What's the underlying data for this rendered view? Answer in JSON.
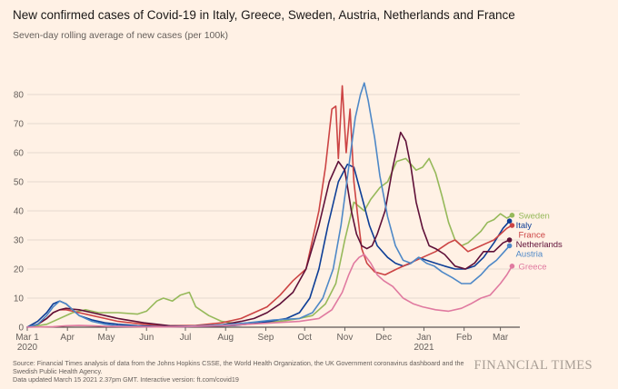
{
  "header": {
    "title": "New confirmed cases of Covid-19 in Italy, Greece, Sweden, Austria, Netherlands and France",
    "subtitle": "Seven-day rolling average of new cases (per 100k)"
  },
  "footer": {
    "source": "Source: Financial Times analysis of data from the Johns Hopkins CSSE, the World Health Organization, the UK Government coronavirus dashboard and the Swedish Public Health Agency.",
    "updated": "Data updated March 15 2021 2.37pm GMT. Interactive version: ft.com/covid19",
    "logo": "FINANCIAL TIMES"
  },
  "chart_data": {
    "type": "line",
    "title": "New confirmed cases of Covid-19 in Italy, Greece, Sweden, Austria, Netherlands and France",
    "subtitle": "Seven-day rolling average of new cases (per 100k)",
    "xlabel": "",
    "ylabel": "",
    "x_unit": "days since 2020-03-01",
    "xlim": [
      0,
      380
    ],
    "ylim": [
      0,
      85
    ],
    "y_ticks": [
      0,
      10,
      20,
      30,
      40,
      50,
      60,
      70,
      80
    ],
    "x_ticks": [
      {
        "day": 0,
        "label": "Mar 1",
        "sub": "2020"
      },
      {
        "day": 31,
        "label": "Apr"
      },
      {
        "day": 61,
        "label": "May"
      },
      {
        "day": 92,
        "label": "Jun"
      },
      {
        "day": 122,
        "label": "Jul"
      },
      {
        "day": 153,
        "label": "Aug"
      },
      {
        "day": 184,
        "label": "Sep"
      },
      {
        "day": 214,
        "label": "Oct"
      },
      {
        "day": 245,
        "label": "Nov"
      },
      {
        "day": 275,
        "label": "Dec"
      },
      {
        "day": 306,
        "label": "Jan",
        "sub": "2021"
      },
      {
        "day": 337,
        "label": "Feb"
      },
      {
        "day": 365,
        "label": "Mar"
      }
    ],
    "grid": "horizontal",
    "legend": "right, labels at line ends",
    "series": [
      {
        "name": "Sweden",
        "color": "#96b95a",
        "x": [
          0,
          15,
          25,
          35,
          45,
          55,
          70,
          85,
          92,
          100,
          105,
          112,
          118,
          125,
          130,
          140,
          150,
          165,
          180,
          195,
          210,
          220,
          230,
          238,
          245,
          252,
          260,
          265,
          272,
          278,
          285,
          292,
          300,
          305,
          310,
          315,
          320,
          325,
          330,
          335,
          340,
          345,
          350,
          355,
          360,
          365,
          370,
          374
        ],
        "y": [
          0,
          1,
          3,
          5,
          6,
          5,
          5,
          4.5,
          5.5,
          9,
          10,
          9,
          11,
          12,
          7,
          4,
          2,
          1,
          1.5,
          2,
          3,
          4,
          8,
          15,
          30,
          43,
          40,
          44,
          48,
          50,
          57,
          58,
          54,
          55,
          58,
          53,
          45,
          36,
          30,
          28,
          29,
          31,
          33,
          36,
          37,
          39,
          37.5,
          38.5
        ]
      },
      {
        "name": "Italy",
        "color": "#0d3e96",
        "x": [
          0,
          8,
          15,
          20,
          25,
          30,
          35,
          40,
          50,
          60,
          70,
          85,
          100,
          120,
          140,
          160,
          180,
          200,
          210,
          218,
          225,
          232,
          240,
          247,
          252,
          258,
          264,
          270,
          278,
          284,
          290,
          296,
          302,
          308,
          315,
          322,
          330,
          338,
          345,
          352,
          360,
          367,
          372
        ],
        "y": [
          0,
          2,
          5,
          8,
          9,
          8,
          6,
          4,
          2.5,
          1.5,
          1,
          0.5,
          0.3,
          0.2,
          0.3,
          0.6,
          1.5,
          3,
          5,
          10,
          20,
          35,
          50,
          56,
          55,
          45,
          35,
          28,
          24,
          22,
          21,
          22,
          24,
          23,
          22,
          21,
          20,
          20,
          21,
          24,
          29,
          34,
          36.5
        ]
      },
      {
        "name": "France",
        "color": "#cc4444",
        "x": [
          0,
          8,
          15,
          20,
          25,
          30,
          35,
          40,
          50,
          60,
          70,
          90,
          110,
          130,
          150,
          165,
          175,
          185,
          195,
          205,
          215,
          225,
          230,
          235,
          238,
          240,
          243,
          246,
          249,
          252,
          255,
          258,
          262,
          268,
          276,
          285,
          295,
          305,
          315,
          325,
          330,
          335,
          340,
          345,
          350,
          355,
          360,
          365,
          370,
          374
        ],
        "y": [
          0,
          1,
          3,
          5,
          6,
          6,
          5.5,
          5,
          4,
          3,
          2,
          1,
          0.5,
          0.6,
          1.5,
          3,
          5,
          7,
          11,
          16,
          20,
          40,
          55,
          75,
          76,
          58,
          83,
          60,
          75,
          50,
          38,
          27,
          22,
          19,
          18,
          20,
          22,
          24,
          26,
          29,
          30,
          28,
          26,
          27,
          28,
          29,
          30,
          32,
          34,
          35
        ]
      },
      {
        "name": "Netherlands",
        "color": "#5f1038",
        "x": [
          0,
          8,
          15,
          20,
          25,
          30,
          35,
          40,
          50,
          60,
          70,
          90,
          110,
          130,
          150,
          165,
          175,
          185,
          195,
          205,
          215,
          225,
          233,
          240,
          245,
          250,
          254,
          258,
          262,
          266,
          270,
          276,
          282,
          288,
          292,
          296,
          300,
          305,
          310,
          315,
          322,
          330,
          338,
          345,
          352,
          360,
          367,
          372
        ],
        "y": [
          0,
          1,
          3,
          5,
          6,
          6.5,
          6.2,
          6,
          5,
          4,
          3,
          1.5,
          0.5,
          0.3,
          0.8,
          2,
          3,
          5,
          8,
          12,
          20,
          35,
          50,
          57,
          54,
          40,
          32,
          28,
          27,
          28,
          32,
          40,
          55,
          67,
          64,
          55,
          43,
          34,
          28,
          27,
          25,
          21,
          20,
          22,
          26,
          26,
          29,
          30
        ]
      },
      {
        "name": "Austria",
        "color": "#4e88c7",
        "x": [
          0,
          8,
          15,
          20,
          25,
          30,
          35,
          40,
          50,
          60,
          70,
          90,
          110,
          130,
          150,
          170,
          190,
          210,
          220,
          228,
          236,
          242,
          248,
          253,
          257,
          260,
          263,
          268,
          272,
          278,
          284,
          290,
          296,
          302,
          308,
          314,
          320,
          328,
          335,
          342,
          350,
          356,
          362,
          368,
          372
        ],
        "y": [
          0,
          1,
          4,
          7,
          9,
          8,
          6,
          4,
          2,
          1,
          0.5,
          0.2,
          0.2,
          0.4,
          0.8,
          1.5,
          2.5,
          3,
          5,
          10,
          20,
          35,
          55,
          72,
          80,
          84,
          78,
          65,
          52,
          38,
          28,
          23,
          22,
          24,
          22,
          21,
          19,
          17,
          15,
          15,
          18,
          21,
          23,
          26,
          28
        ]
      },
      {
        "name": "Greece",
        "color": "#e07aa0",
        "x": [
          0,
          20,
          30,
          40,
          50,
          60,
          80,
          100,
          120,
          150,
          170,
          190,
          210,
          225,
          235,
          243,
          248,
          252,
          256,
          260,
          265,
          270,
          275,
          282,
          290,
          298,
          305,
          315,
          325,
          335,
          342,
          350,
          357,
          365,
          370,
          374
        ],
        "y": [
          0,
          0.2,
          0.5,
          0.6,
          0.5,
          0.3,
          0.2,
          0.1,
          0.2,
          0.5,
          1,
          1.5,
          2,
          3,
          6,
          12,
          18,
          22,
          24,
          25,
          22,
          18,
          16,
          14,
          10,
          8,
          7,
          6,
          5.5,
          6.5,
          8,
          10,
          11,
          15,
          18,
          21
        ]
      }
    ]
  }
}
